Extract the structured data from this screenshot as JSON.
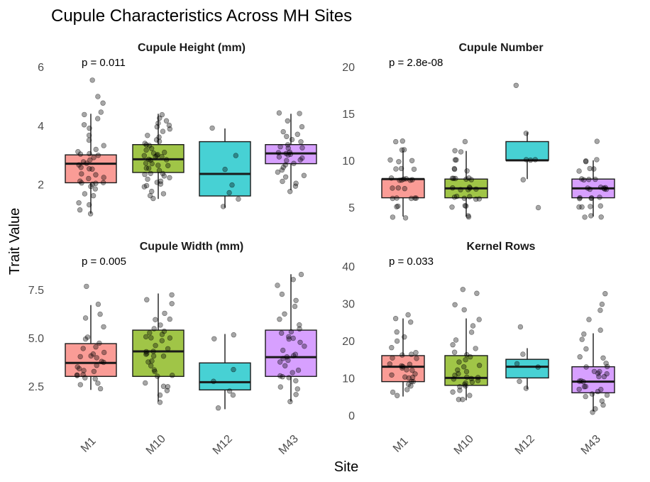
{
  "chart_data": {
    "type": "box",
    "title": "Cupule Characteristics Across MH Sites",
    "xlabel": "Site",
    "ylabel": "Trait Value",
    "categories": [
      "M1",
      "M10",
      "M12",
      "M43"
    ],
    "colors": [
      "#F8766D",
      "#7CAE00",
      "#00BFC4",
      "#C77CFF"
    ],
    "grid": false,
    "facets": [
      {
        "title": "Cupule Height (mm)",
        "pvalue": "p = 0.011",
        "ylim": [
          0.9,
          6.1
        ],
        "yticks": [
          2,
          4,
          6
        ],
        "ytick_labels": [
          "2",
          "4",
          "6"
        ],
        "boxes": [
          {
            "q1": 2.05,
            "median": 2.7,
            "q3": 3.0,
            "whisker_low": 1.0,
            "whisker_high": 4.4
          },
          {
            "q1": 2.4,
            "median": 2.85,
            "q3": 3.35,
            "whisker_low": 1.5,
            "whisker_high": 4.4
          },
          {
            "q1": 1.6,
            "median": 2.35,
            "q3": 3.45,
            "whisker_low": 1.2,
            "whisker_high": 3.9
          },
          {
            "q1": 2.7,
            "median": 3.05,
            "q3": 3.35,
            "whisker_low": 1.8,
            "whisker_high": 4.4
          }
        ],
        "points": [
          [
            1.0,
            1.1,
            1.3,
            1.4,
            1.6,
            1.7,
            1.8,
            1.9,
            2.0,
            2.0,
            2.0,
            2.1,
            2.1,
            2.2,
            2.2,
            2.3,
            2.4,
            2.5,
            2.5,
            2.6,
            2.7,
            2.7,
            2.8,
            2.8,
            2.9,
            3.0,
            3.0,
            3.0,
            3.1,
            3.2,
            3.3,
            3.5,
            3.7,
            3.9,
            4.0,
            4.2,
            4.4,
            4.5,
            4.8,
            5.0,
            5.5
          ],
          [
            1.5,
            1.6,
            1.7,
            1.8,
            1.9,
            2.0,
            2.0,
            2.1,
            2.1,
            2.2,
            2.2,
            2.3,
            2.3,
            2.4,
            2.4,
            2.5,
            2.5,
            2.5,
            2.6,
            2.6,
            2.7,
            2.7,
            2.8,
            2.8,
            2.8,
            2.9,
            2.9,
            3.0,
            3.0,
            3.0,
            3.1,
            3.1,
            3.2,
            3.2,
            3.3,
            3.3,
            3.4,
            3.5,
            3.5,
            3.6,
            3.7,
            3.8,
            3.9,
            4.0,
            4.0,
            4.1,
            4.2,
            4.3,
            4.4
          ],
          [
            1.2,
            1.5,
            1.7,
            2.0,
            2.5,
            3.0,
            3.9
          ],
          [
            1.8,
            1.9,
            2.0,
            2.1,
            2.2,
            2.3,
            2.4,
            2.5,
            2.6,
            2.7,
            2.7,
            2.8,
            2.8,
            2.9,
            2.9,
            3.0,
            3.0,
            3.0,
            3.1,
            3.1,
            3.2,
            3.2,
            3.3,
            3.3,
            3.4,
            3.5,
            3.6,
            3.7,
            3.8,
            4.0,
            4.2,
            4.4,
            4.4
          ]
        ]
      },
      {
        "title": "Cupule Number",
        "pvalue": "p = 2.8e-08",
        "ylim": [
          4.0,
          20.3
        ],
        "yticks": [
          5,
          10,
          15,
          20
        ],
        "ytick_labels": [
          "5",
          "10",
          "15",
          "20"
        ],
        "boxes": [
          {
            "q1": 6,
            "median": 8,
            "q3": 8,
            "whisker_low": 4,
            "whisker_high": 11
          },
          {
            "q1": 6,
            "median": 7,
            "q3": 8,
            "whisker_low": 4,
            "whisker_high": 11
          },
          {
            "q1": 10,
            "median": 10,
            "q3": 12,
            "whisker_low": 8,
            "whisker_high": 13
          },
          {
            "q1": 6,
            "median": 7,
            "q3": 8,
            "whisker_low": 4,
            "whisker_high": 10
          }
        ],
        "points": [
          [
            4,
            4,
            5,
            5,
            6,
            6,
            6,
            6,
            6,
            7,
            7,
            7,
            8,
            8,
            8,
            8,
            8,
            8,
            8,
            9,
            9,
            9,
            10,
            10,
            10,
            11,
            11,
            12,
            12
          ],
          [
            4,
            4,
            5,
            5,
            5,
            6,
            6,
            6,
            6,
            6,
            6,
            7,
            7,
            7,
            7,
            7,
            7,
            8,
            8,
            8,
            8,
            8,
            8,
            9,
            9,
            9,
            10,
            10,
            11,
            11,
            12
          ],
          [
            5,
            8,
            10,
            10,
            10,
            13,
            18
          ],
          [
            4,
            4,
            4,
            5,
            5,
            5,
            5,
            6,
            6,
            6,
            6,
            6,
            7,
            7,
            7,
            7,
            7,
            7,
            7,
            8,
            8,
            8,
            8,
            9,
            9,
            9,
            10,
            10,
            10,
            12
          ]
        ]
      },
      {
        "title": "Cupule Width (mm)",
        "pvalue": "p = 0.005",
        "ylim": [
          0.8,
          8.9
        ],
        "yticks": [
          2.5,
          5.0,
          7.5
        ],
        "ytick_labels": [
          "2.5",
          "5.0",
          "7.5"
        ],
        "boxes": [
          {
            "q1": 3.0,
            "median": 3.7,
            "q3": 4.7,
            "whisker_low": 2.3,
            "whisker_high": 6.7
          },
          {
            "q1": 3.0,
            "median": 4.3,
            "q3": 5.4,
            "whisker_low": 1.7,
            "whisker_high": 7.3
          },
          {
            "q1": 2.3,
            "median": 2.7,
            "q3": 3.7,
            "whisker_low": 1.3,
            "whisker_high": 5.2
          },
          {
            "q1": 3.0,
            "median": 4.0,
            "q3": 5.4,
            "whisker_low": 1.7,
            "whisker_high": 8.3
          }
        ],
        "points": [
          [
            2.3,
            2.5,
            2.7,
            2.8,
            3.0,
            3.0,
            3.0,
            3.1,
            3.2,
            3.3,
            3.4,
            3.5,
            3.6,
            3.7,
            3.8,
            3.9,
            4.0,
            4.1,
            4.2,
            4.3,
            4.4,
            4.5,
            4.7,
            5.0,
            5.0,
            5.5,
            6.0,
            6.3,
            6.7,
            7.7
          ],
          [
            1.7,
            2.0,
            2.3,
            2.5,
            2.5,
            2.7,
            3.0,
            3.0,
            3.2,
            3.3,
            3.5,
            3.7,
            3.8,
            4.0,
            4.0,
            4.1,
            4.2,
            4.3,
            4.3,
            4.5,
            4.6,
            4.8,
            5.0,
            5.0,
            5.0,
            5.2,
            5.3,
            5.4,
            5.5,
            5.7,
            6.0,
            6.0,
            6.3,
            6.7,
            7.0,
            7.3
          ],
          [
            1.3,
            2.0,
            2.3,
            2.7,
            3.3,
            5.0,
            5.2
          ],
          [
            1.7,
            2.0,
            2.3,
            2.5,
            2.7,
            3.0,
            3.0,
            3.0,
            3.2,
            3.3,
            3.5,
            3.7,
            3.8,
            4.0,
            4.0,
            4.0,
            4.2,
            4.3,
            4.5,
            4.7,
            5.0,
            5.0,
            5.0,
            5.2,
            5.3,
            5.5,
            5.7,
            6.0,
            6.3,
            6.7,
            7.0,
            7.3,
            7.7,
            8.0,
            8.3
          ]
        ]
      },
      {
        "title": "Kernel Rows",
        "pvalue": "p = 0.033",
        "ylim": [
          -1.0,
          41.0
        ],
        "yticks": [
          0,
          10,
          20,
          30,
          40
        ],
        "ytick_labels": [
          "0",
          "10",
          "20",
          "30",
          "40"
        ],
        "boxes": [
          {
            "q1": 9,
            "median": 13,
            "q3": 16,
            "whisker_low": 5,
            "whisker_high": 26
          },
          {
            "q1": 8,
            "median": 10,
            "q3": 16,
            "whisker_low": 4,
            "whisker_high": 26
          },
          {
            "q1": 10,
            "median": 13,
            "q3": 15,
            "whisker_low": 7,
            "whisker_high": 18
          },
          {
            "q1": 6,
            "median": 9,
            "q3": 13,
            "whisker_low": 1,
            "whisker_high": 22
          }
        ],
        "points": [
          [
            5,
            6,
            7,
            8,
            8,
            9,
            9,
            10,
            10,
            10,
            11,
            11,
            12,
            12,
            13,
            13,
            13,
            14,
            14,
            15,
            15,
            16,
            16,
            17,
            18,
            20,
            21,
            22,
            25,
            26,
            27
          ],
          [
            4,
            4,
            5,
            6,
            7,
            8,
            8,
            8,
            9,
            9,
            9,
            10,
            10,
            10,
            10,
            11,
            11,
            12,
            12,
            13,
            13,
            14,
            15,
            16,
            16,
            17,
            18,
            19,
            20,
            22,
            24,
            26,
            28,
            30,
            33,
            34
          ],
          [
            7,
            9,
            13,
            14,
            16,
            24
          ],
          [
            1,
            2,
            3,
            4,
            5,
            5,
            6,
            6,
            7,
            7,
            8,
            8,
            9,
            9,
            9,
            10,
            10,
            11,
            11,
            12,
            12,
            13,
            13,
            14,
            15,
            16,
            18,
            20,
            22,
            23,
            26,
            28,
            30,
            33
          ]
        ]
      }
    ]
  }
}
